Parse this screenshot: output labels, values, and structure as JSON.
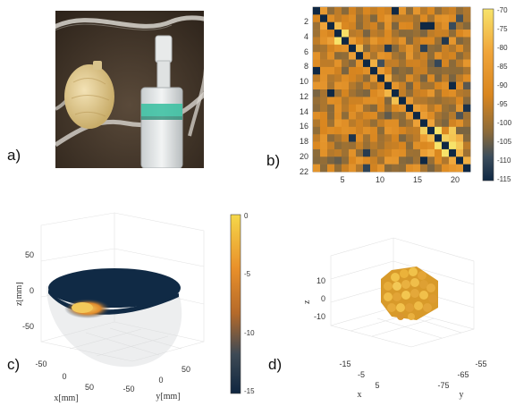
{
  "panel_labels": {
    "a": "a)",
    "b": "b)",
    "c": "c)",
    "d": "d)"
  },
  "panel_a": {
    "subject": "photo-balloon-phantom-with-syringe"
  },
  "panel_b": {
    "x_ticks": [
      "5",
      "10",
      "15",
      "20"
    ],
    "y_ticks": [
      "2",
      "4",
      "6",
      "8",
      "10",
      "12",
      "14",
      "16",
      "18",
      "20",
      "22"
    ],
    "colorbar_ticks": [
      "-70",
      "-75",
      "-80",
      "-85",
      "-90",
      "-95",
      "-100",
      "-105",
      "-110",
      "-115"
    ]
  },
  "panel_c": {
    "z_label": "z[mm]",
    "x_label": "x[mm]",
    "y_label": "y[mm]",
    "z_ticks": [
      "50",
      "0",
      "-50"
    ],
    "x_ticks": [
      "-50",
      "0",
      "50"
    ],
    "y_ticks": [
      "-50",
      "0",
      "50"
    ],
    "colorbar_ticks": [
      "0",
      "-5",
      "-10",
      "-15"
    ]
  },
  "panel_d": {
    "z_label": "z",
    "x_label": "x",
    "y_label": "y",
    "z_ticks": [
      "10",
      "0",
      "-10"
    ],
    "x_ticks": [
      "-15",
      "-5",
      "5"
    ],
    "y_ticks": [
      "-55",
      "-65",
      "-75"
    ]
  },
  "chart_data": [
    {
      "type": "heatmap",
      "rows": 22,
      "cols": 22,
      "xlim": [
        1,
        22
      ],
      "ylim": [
        1,
        22
      ],
      "colorbar_range": [
        -115,
        -70
      ],
      "note_diagonal": -115
    }
  ]
}
